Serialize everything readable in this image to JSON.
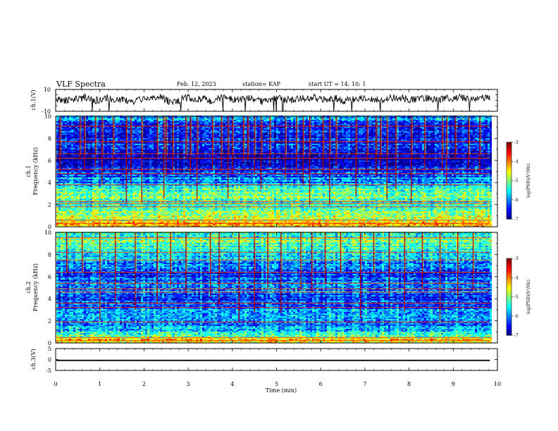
{
  "header": {
    "title": "VLF Spectra",
    "date": "Feb. 12, 2023",
    "station": "station= KAP",
    "start": "start  UT  =   14: 10: 1"
  },
  "chart_data": [
    {
      "type": "line",
      "name": "ch1-waveform",
      "ylabel": "ch.1(V)",
      "ylim": [
        -10,
        10
      ],
      "yticks": [
        "10",
        "-10"
      ],
      "xlim": [
        0,
        10
      ],
      "x_end": 9.83,
      "y": [
        1.5,
        -1,
        2,
        0.5,
        3,
        -0.5,
        1,
        2.5,
        0,
        1.5,
        -2,
        0.5,
        2,
        1,
        3.5,
        0,
        -1.5,
        1,
        2.5,
        0.5,
        1.5,
        -0.5,
        2,
        3,
        1,
        0,
        2.5,
        1.5,
        -1,
        0.5,
        2,
        1,
        0,
        2.5,
        1.5,
        3,
        0.5,
        1,
        2,
        -0.5,
        1.5,
        0.5,
        2.5,
        1,
        0,
        1.5,
        3,
        2,
        0.5,
        1,
        2.5,
        1.5,
        0,
        2,
        1,
        3,
        1.5,
        0.5,
        2,
        2.5
      ]
    },
    {
      "type": "heatmap",
      "name": "ch1-spectrogram",
      "channel": "ch.1",
      "ylabel": "Frequency  (kHz)",
      "ylim": [
        0,
        10
      ],
      "yticks": [
        "0",
        "2",
        "4",
        "6",
        "8",
        "10"
      ],
      "xlim": [
        0,
        10
      ],
      "x_end": 9.83,
      "colorbar": {
        "label": "log(PSD)(V²/Hz)",
        "range": [
          -7,
          -3
        ],
        "ticks": [
          "-3",
          "-4",
          "-5",
          "-6",
          "-7"
        ]
      },
      "frequency_profile_logpsd": [
        -4.2,
        -4.7,
        -5.0,
        -5.2,
        -5.4,
        -5.1,
        -5.3,
        -5.6,
        -5.9,
        -6.2,
        -6.5,
        -6.7,
        -6.8,
        -6.7,
        -6.3,
        -6.5,
        -6.6,
        -6.3,
        -6.4,
        -5.8
      ],
      "bright_lines_khz": [
        0.3,
        0.6,
        1.8,
        2.1,
        2.3,
        3.8,
        4.8,
        5.2,
        6.2,
        6.6,
        7.7,
        9.1
      ],
      "vertical_events_min": [
        0.1,
        0.55,
        0.65,
        0.9,
        1.05,
        1.3,
        1.6,
        1.7,
        1.95,
        2.3,
        2.45,
        2.5,
        2.65,
        2.95,
        3.05,
        3.2,
        3.55,
        3.75,
        3.9,
        4.0,
        4.25,
        4.35,
        4.5,
        4.65,
        4.85,
        5.2,
        5.45,
        5.6,
        5.75,
        6.05,
        6.2,
        6.35,
        6.8,
        7.05,
        7.25,
        7.35,
        7.5,
        7.7,
        8.05,
        8.35,
        8.75,
        8.85,
        9.05,
        9.35,
        9.6
      ],
      "burst_top_band_khz": [
        6.5,
        10
      ]
    },
    {
      "type": "heatmap",
      "name": "ch2-spectrogram",
      "channel": "ch.2",
      "ylabel": "Frequency  (kHz)",
      "ylim": [
        0,
        10
      ],
      "yticks": [
        "0",
        "2",
        "4",
        "6",
        "8",
        "10"
      ],
      "xlim": [
        0,
        10
      ],
      "x_end": 9.83,
      "colorbar": {
        "label": "log(PSD)(V²/Hz)",
        "range": [
          -7,
          -3
        ],
        "ticks": [
          "-3",
          "-4",
          "-5",
          "-6",
          "-7"
        ]
      },
      "frequency_profile_logpsd": [
        -4.4,
        -5.3,
        -5.8,
        -6.0,
        -5.8,
        -5.9,
        -6.1,
        -6.2,
        -6.3,
        -6.0,
        -5.9,
        -6.1,
        -6.3,
        -6.1,
        -5.9,
        -5.7,
        -5.5,
        -5.2,
        -5.0,
        -5.3
      ],
      "bright_lines_khz": [
        0.2,
        0.5,
        1.9,
        3.2,
        3.6,
        4.6,
        4.9,
        5.4,
        6.4,
        7.5,
        8.2,
        9.5
      ],
      "vertical_events_min": [
        0.25,
        0.6,
        1.0,
        1.35,
        1.8,
        2.3,
        2.6,
        2.95,
        3.5,
        3.7,
        4.15,
        4.5,
        4.8,
        5.1,
        5.55,
        5.8,
        6.1,
        6.45,
        6.9,
        7.2,
        7.55,
        7.9,
        8.3,
        8.7,
        9.1,
        9.45
      ],
      "burst_top_band_khz": [
        6.5,
        10
      ]
    },
    {
      "type": "line",
      "name": "ch3-signal",
      "ylabel": "ch.3(V)",
      "ylim": [
        -5,
        5
      ],
      "yticks": [
        "5",
        "0",
        "-5"
      ],
      "xlim": [
        0,
        10
      ],
      "x_end": 9.83,
      "y_band": [
        -0.7,
        -0.1
      ]
    }
  ],
  "xaxis": {
    "label": "Time  (min)",
    "ticks": [
      "0",
      "1",
      "2",
      "3",
      "4",
      "5",
      "6",
      "7",
      "8",
      "9",
      "10"
    ],
    "range": [
      0,
      10
    ]
  }
}
